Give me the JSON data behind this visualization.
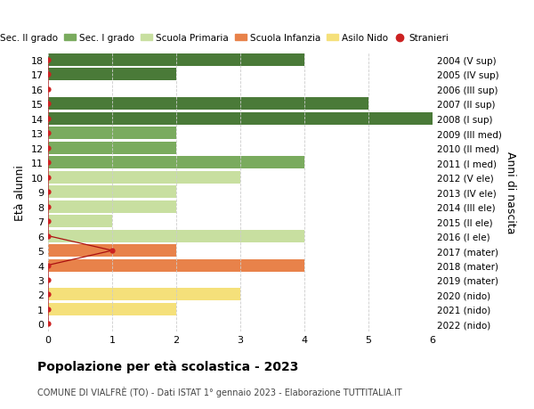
{
  "ages": [
    0,
    1,
    2,
    3,
    4,
    5,
    6,
    7,
    8,
    9,
    10,
    11,
    12,
    13,
    14,
    15,
    16,
    17,
    18
  ],
  "right_labels": [
    "2022 (nido)",
    "2021 (nido)",
    "2020 (nido)",
    "2019 (mater)",
    "2018 (mater)",
    "2017 (mater)",
    "2016 (I ele)",
    "2015 (II ele)",
    "2014 (III ele)",
    "2013 (IV ele)",
    "2012 (V ele)",
    "2011 (I med)",
    "2010 (II med)",
    "2009 (III med)",
    "2008 (I sup)",
    "2007 (II sup)",
    "2006 (III sup)",
    "2005 (IV sup)",
    "2004 (V sup)"
  ],
  "bar_values": [
    0,
    2,
    3,
    0,
    4,
    2,
    4,
    1,
    2,
    2,
    3,
    4,
    2,
    2,
    6,
    5,
    0,
    2,
    4
  ],
  "bar_colors": [
    "#f5e07a",
    "#f5e07a",
    "#f5e07a",
    "#e8824a",
    "#e8824a",
    "#e8824a",
    "#c8dfa0",
    "#c8dfa0",
    "#c8dfa0",
    "#c8dfa0",
    "#c8dfa0",
    "#7aab5e",
    "#7aab5e",
    "#7aab5e",
    "#4a7a38",
    "#4a7a38",
    "#4a7a38",
    "#4a7a38",
    "#4a7a38"
  ],
  "stranieri_x": [
    0,
    0,
    0,
    0,
    0,
    1,
    0,
    0,
    0,
    0,
    0,
    0,
    0,
    0,
    0,
    0,
    0,
    0,
    0
  ],
  "legend_labels": [
    "Sec. II grado",
    "Sec. I grado",
    "Scuola Primaria",
    "Scuola Infanzia",
    "Asilo Nido",
    "Stranieri"
  ],
  "legend_colors": [
    "#4a7a38",
    "#7aab5e",
    "#c8dfa0",
    "#e8824a",
    "#f5e07a",
    "#cc2222"
  ],
  "title": "Popolazione per età scolastica - 2023",
  "subtitle": "COMUNE DI VIALFRÈ (TO) - Dati ISTAT 1° gennaio 2023 - Elaborazione TUTTITALIA.IT",
  "ylabel_left": "Età alunni",
  "ylabel_right": "Anni di nascita",
  "xlim": [
    0,
    6
  ],
  "ylim": [
    -0.5,
    18.5
  ],
  "background_color": "#ffffff",
  "grid_color": "#cccccc"
}
